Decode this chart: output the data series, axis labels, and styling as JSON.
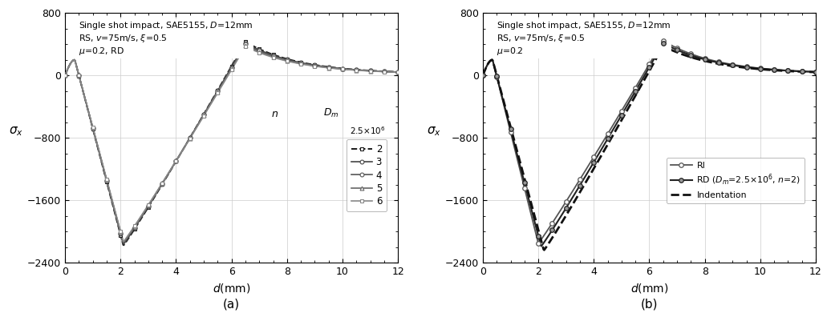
{
  "xlabel": "$d$(mm)",
  "ylabel": "$\\sigma_x$",
  "xlim": [
    0,
    12
  ],
  "ylim": [
    -2400,
    800
  ],
  "yticks": [
    -2400,
    -1600,
    -800,
    0,
    800
  ],
  "xticks": [
    0,
    2,
    4,
    6,
    8,
    10,
    12
  ],
  "label_a": "(a)",
  "label_b": "(b)",
  "text_a": "Single shot impact, SAE5155, $D$=12mm\nRS, $v$=75m/s, $\\xi$=0.5\n$\\mu$=0.2, RD",
  "text_b": "Single shot impact, SAE5155, $D$=12mm\nRS, $v$=75m/s, $\\xi$=0.5\n$\\mu$=0.2",
  "background_color": "#ffffff",
  "grid_color": "#cccccc",
  "curves_a": [
    {
      "n": 2,
      "min_val": -2180,
      "min_x": 2.1,
      "peak_val": 430,
      "peak_x": 6.5,
      "color": "#1a1a1a",
      "lw": 1.4,
      "ls": "--",
      "marker": "s",
      "ms": 3.5
    },
    {
      "n": 3,
      "min_val": -2165,
      "min_x": 2.1,
      "peak_val": 415,
      "peak_x": 6.5,
      "color": "#444444",
      "lw": 1.2,
      "ls": "-",
      "marker": "o",
      "ms": 3.5
    },
    {
      "n": 4,
      "min_val": -2150,
      "min_x": 2.1,
      "peak_val": 400,
      "peak_x": 6.5,
      "color": "#555555",
      "lw": 1.2,
      "ls": "-",
      "marker": "o",
      "ms": 3.5
    },
    {
      "n": 5,
      "min_val": -2140,
      "min_x": 2.1,
      "peak_val": 385,
      "peak_x": 6.5,
      "color": "#666666",
      "lw": 1.2,
      "ls": "-",
      "marker": "^",
      "ms": 3.5
    },
    {
      "n": 6,
      "min_val": -2130,
      "min_x": 2.1,
      "peak_val": 370,
      "peak_x": 6.5,
      "color": "#888888",
      "lw": 1.2,
      "ls": "-",
      "marker": "s",
      "ms": 3.5
    }
  ],
  "curves_b": [
    {
      "label": "RI",
      "min_val": -2150,
      "min_x": 2.0,
      "peak_val": 445,
      "peak_x": 6.5,
      "color": "#555555",
      "lw": 1.3,
      "ls": "-",
      "marker": "o",
      "ms": 4.0,
      "mfc": "white"
    },
    {
      "label": "RD",
      "min_val": -2190,
      "min_x": 2.1,
      "peak_val": 415,
      "peak_x": 6.5,
      "color": "#222222",
      "lw": 1.5,
      "ls": "-",
      "marker": "o",
      "ms": 4.0,
      "mfc": "#999999"
    },
    {
      "label": "Indentation",
      "min_val": -2240,
      "min_x": 2.2,
      "peak_val": 375,
      "peak_x": 6.5,
      "color": "#111111",
      "lw": 2.0,
      "ls": "--",
      "marker": null,
      "ms": 0,
      "mfc": "none"
    }
  ]
}
